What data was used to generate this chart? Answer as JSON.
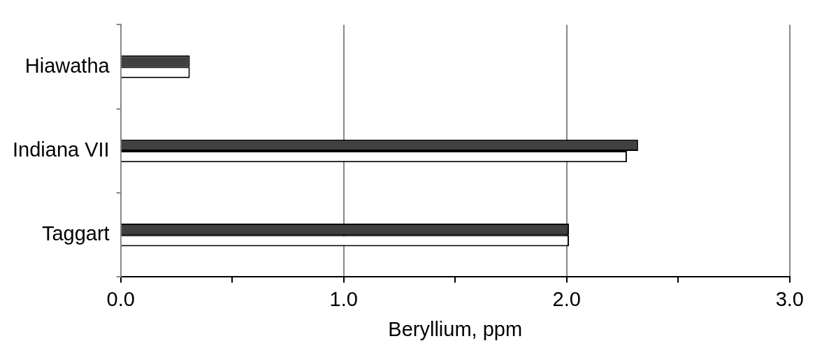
{
  "chart_data": {
    "type": "bar",
    "orientation": "horizontal",
    "categories": [
      "Hiawatha",
      "Indiana VII",
      "Taggart"
    ],
    "series": [
      {
        "color": "#404040",
        "values": [
          0.31,
          2.32,
          2.01
        ]
      },
      {
        "color": "#ffffff",
        "values": [
          0.31,
          2.27,
          2.01
        ]
      }
    ],
    "xlabel": "Beryllium, ppm",
    "xlim": [
      0,
      3
    ],
    "xticks": [
      {
        "value": 0,
        "label": "0.0"
      },
      {
        "value": 0.5,
        "label": null
      },
      {
        "value": 1,
        "label": "1.0"
      },
      {
        "value": 1.5,
        "label": null
      },
      {
        "value": 2,
        "label": "2.0"
      },
      {
        "value": 2.5,
        "label": null
      },
      {
        "value": 3,
        "label": "3.0"
      }
    ],
    "grid": "x",
    "legend": false
  }
}
